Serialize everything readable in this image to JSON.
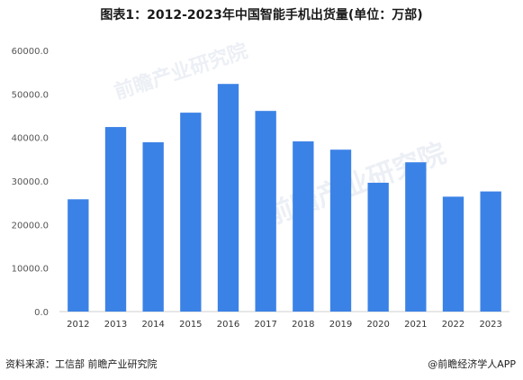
{
  "title": "图表1：2012-2023年中国智能手机出货量(单位：万部)",
  "footer": {
    "source": "资料来源：工信部 前瞻产业研究院",
    "brand": "@前瞻经济学人APP"
  },
  "watermark": "前瞻产业研究院",
  "colors": {
    "bar": "#3b82e6",
    "axis": "#cfcfcf"
  },
  "chart_data": {
    "type": "bar",
    "categories": [
      "2012",
      "2013",
      "2014",
      "2015",
      "2016",
      "2017",
      "2018",
      "2019",
      "2020",
      "2021",
      "2022",
      "2023"
    ],
    "values": [
      25800,
      42400,
      38900,
      45700,
      52300,
      46100,
      39100,
      37200,
      29600,
      34300,
      26400,
      27600
    ],
    "yticks": [
      "0.0",
      "10000.0",
      "20000.0",
      "30000.0",
      "40000.0",
      "50000.0",
      "60000.0"
    ],
    "ylim": [
      0,
      60000
    ],
    "grid": false,
    "legend": "none"
  }
}
